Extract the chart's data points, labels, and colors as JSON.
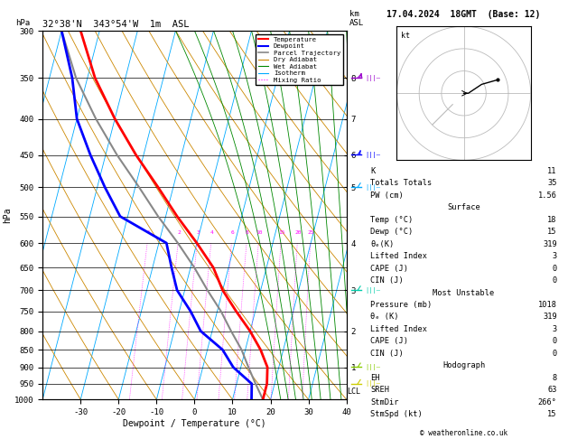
{
  "title_left": "32°38'N  343°54'W  1m  ASL",
  "title_right": "17.04.2024  18GMT  (Base: 12)",
  "xlabel": "Dewpoint / Temperature (°C)",
  "ylabel_left": "hPa",
  "pressure_levels": [
    300,
    350,
    400,
    450,
    500,
    550,
    600,
    650,
    700,
    750,
    800,
    850,
    900,
    950,
    1000
  ],
  "temp_ticks": [
    -30,
    -20,
    -10,
    0,
    10,
    20,
    30,
    40
  ],
  "temp_min": -40,
  "temp_max": 40,
  "pressure_min": 300,
  "pressure_max": 1000,
  "temp_color": "#ff0000",
  "dewp_color": "#0000ff",
  "parcel_color": "#888888",
  "dry_adiabat_color": "#cc8800",
  "wet_adiabat_color": "#008800",
  "isotherm_color": "#00aaff",
  "mixing_ratio_color": "#ff00ff",
  "background_color": "#ffffff",
  "temp_profile_T": [
    18,
    18,
    17,
    14,
    10,
    5,
    0,
    -4,
    -10,
    -17,
    -24,
    -32,
    -40,
    -48,
    -55
  ],
  "temp_profile_P": [
    1000,
    950,
    900,
    850,
    800,
    750,
    700,
    650,
    600,
    550,
    500,
    450,
    400,
    350,
    300
  ],
  "dewp_profile_T": [
    15,
    14,
    8,
    4,
    -3,
    -7,
    -12,
    -15,
    -18,
    -32,
    -38,
    -44,
    -50,
    -54,
    -60
  ],
  "dewp_profile_P": [
    1000,
    950,
    900,
    850,
    800,
    750,
    700,
    650,
    600,
    550,
    500,
    450,
    400,
    350,
    300
  ],
  "parcel_profile_T": [
    18,
    15,
    12,
    9,
    5,
    1,
    -4,
    -9,
    -15,
    -22,
    -29,
    -37,
    -45,
    -53,
    -60
  ],
  "parcel_profile_P": [
    1000,
    950,
    900,
    850,
    800,
    750,
    700,
    650,
    600,
    550,
    500,
    450,
    400,
    350,
    300
  ],
  "km_levels": [
    1,
    2,
    3,
    4,
    5,
    6,
    7,
    8
  ],
  "km_pressures": [
    900,
    800,
    700,
    600,
    500,
    450,
    400,
    350
  ],
  "mixing_ratio_values": [
    1,
    2,
    3,
    4,
    6,
    8,
    10,
    15,
    20,
    25
  ],
  "lcl_pressure": 975,
  "skew_factor": 25.0,
  "stats": {
    "K": 11,
    "Totals_Totals": 35,
    "PW_cm": 1.56,
    "Surface_Temp": 18,
    "Surface_Dewp": 15,
    "Surface_theta_e": 319,
    "Surface_Lifted_Index": 3,
    "Surface_CAPE": 0,
    "Surface_CIN": 0,
    "MU_Pressure": 1018,
    "MU_theta_e": 319,
    "MU_Lifted_Index": 3,
    "MU_CAPE": 0,
    "MU_CIN": 0,
    "EH": 8,
    "SREH": 63,
    "StmDir": 266,
    "StmSpd_kt": 15
  },
  "copyright": "© weatheronline.co.uk",
  "barb_pressures": [
    350,
    450,
    500,
    700,
    900,
    950
  ],
  "barb_colors": [
    "#9900cc",
    "#0000ff",
    "#00aaff",
    "#00ccaa",
    "#88cc00",
    "#cccc00"
  ],
  "barb_u": [
    25,
    15,
    12,
    8,
    5,
    3
  ],
  "barb_v": [
    8,
    4,
    3,
    2,
    2,
    1
  ]
}
